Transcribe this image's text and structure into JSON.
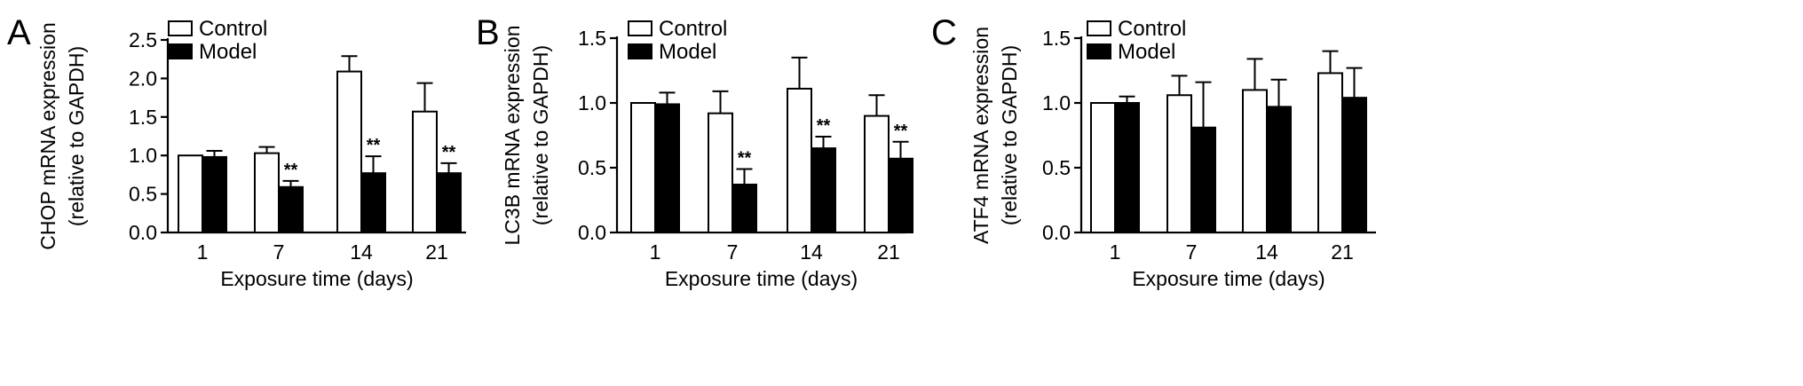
{
  "chart_data": [
    {
      "type": "bar",
      "panel": "A",
      "ylabel": [
        "CHOP mRNA expression",
        "(relative to GAPDH)"
      ],
      "xlabel": "Exposure time (days)",
      "ylim": [
        0,
        2.5
      ],
      "yticks": [
        "0.0",
        "0.5",
        "1.0",
        "1.5",
        "2.0",
        "2.5"
      ],
      "categories": [
        "1",
        "7",
        "14",
        "21"
      ],
      "series": [
        {
          "name": "Control",
          "values": [
            1.0,
            1.03,
            2.09,
            1.57
          ],
          "errors": [
            0.0,
            0.08,
            0.2,
            0.37
          ]
        },
        {
          "name": "Model",
          "values": [
            0.98,
            0.59,
            0.77,
            0.77
          ],
          "errors": [
            0.08,
            0.08,
            0.22,
            0.13
          ],
          "significance": [
            "",
            "**",
            "**",
            "**"
          ]
        }
      ]
    },
    {
      "type": "bar",
      "panel": "B",
      "ylabel": [
        "LC3B mRNA expression",
        "(relative to GAPDH)"
      ],
      "xlabel": "Exposure time (days)",
      "ylim": [
        0,
        1.5
      ],
      "yticks": [
        "0.0",
        "0.5",
        "1.0",
        "1.5"
      ],
      "categories": [
        "1",
        "7",
        "14",
        "21"
      ],
      "series": [
        {
          "name": "Control",
          "values": [
            1.0,
            0.92,
            1.11,
            0.9
          ],
          "errors": [
            0.0,
            0.17,
            0.24,
            0.16
          ]
        },
        {
          "name": "Model",
          "values": [
            0.99,
            0.37,
            0.65,
            0.57
          ],
          "errors": [
            0.09,
            0.12,
            0.09,
            0.13
          ],
          "significance": [
            "",
            "**",
            "**",
            "**"
          ]
        }
      ]
    },
    {
      "type": "bar",
      "panel": "C",
      "ylabel": [
        "ATF4 mRNA expression",
        "(relative to GAPDH)"
      ],
      "xlabel": "Exposure time (days)",
      "ylim": [
        0,
        1.5
      ],
      "yticks": [
        "0.0",
        "0.5",
        "1.0",
        "1.5"
      ],
      "categories": [
        "1",
        "7",
        "14",
        "21"
      ],
      "series": [
        {
          "name": "Control",
          "values": [
            1.0,
            1.06,
            1.1,
            1.23
          ],
          "errors": [
            0.0,
            0.15,
            0.24,
            0.17
          ]
        },
        {
          "name": "Model",
          "values": [
            1.0,
            0.81,
            0.97,
            1.04
          ],
          "errors": [
            0.05,
            0.35,
            0.21,
            0.23
          ],
          "significance": [
            "",
            "",
            "",
            ""
          ]
        }
      ]
    }
  ],
  "colors": {
    "control_fill": "#ffffff",
    "model_fill": "#000000",
    "axis": "#000000"
  }
}
